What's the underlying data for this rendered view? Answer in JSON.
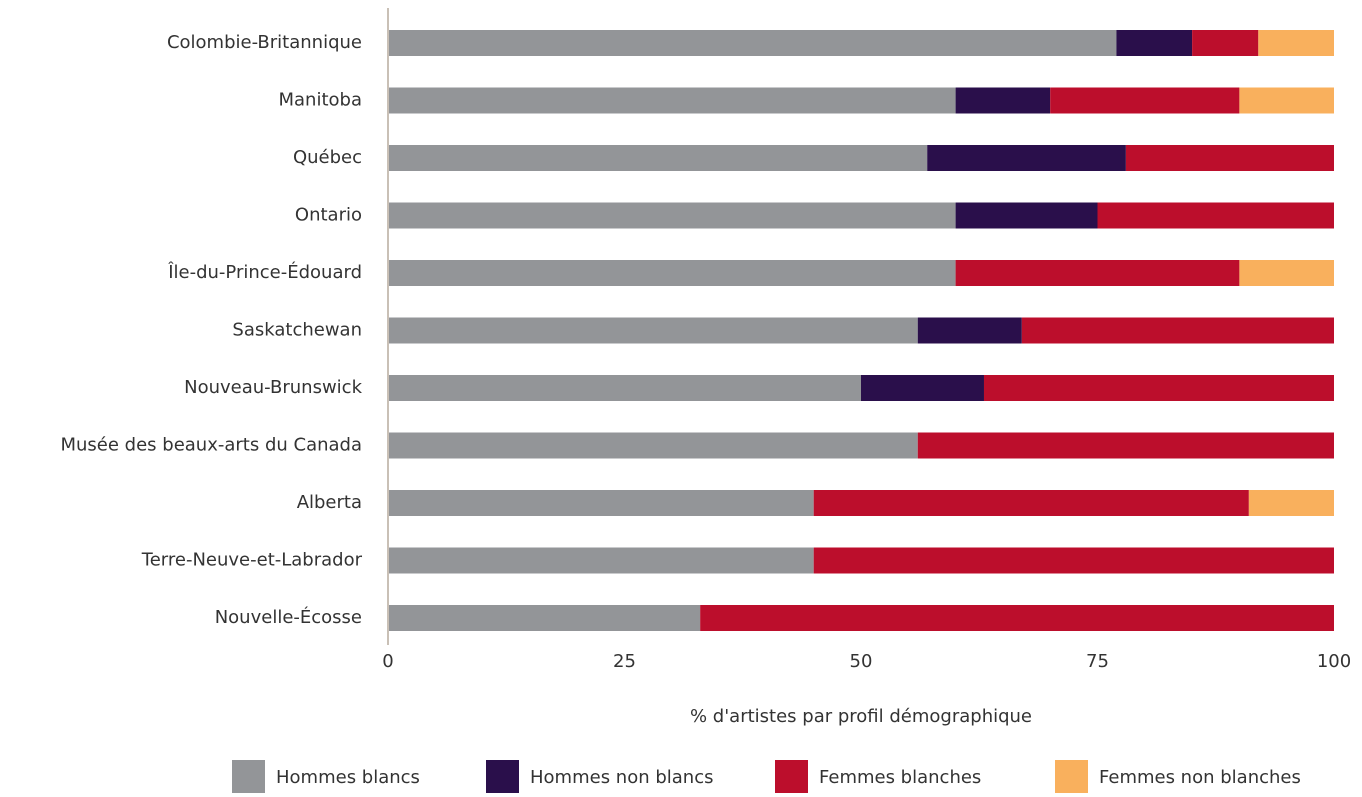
{
  "chart_data": {
    "type": "bar",
    "orientation": "horizontal",
    "stacked": true,
    "categories": [
      "Colombie-Britannique",
      "Manitoba",
      "Québec",
      "Ontario",
      "Île-du-Prince-Édouard",
      "Saskatchewan",
      "Nouveau-Brunswick",
      "Musée des beaux-arts du Canada",
      "Alberta",
      "Terre-Neuve-et-Labrador",
      "Nouvelle-Écosse"
    ],
    "series": [
      {
        "name": "Hommes blancs",
        "color": "#939598",
        "values": [
          77,
          60,
          57,
          60,
          60,
          56,
          50,
          56,
          45,
          45,
          33
        ]
      },
      {
        "name": "Hommes non blancs",
        "color": "#2a0f4b",
        "values": [
          8,
          10,
          21,
          15,
          0,
          11,
          13,
          0,
          0,
          0,
          0
        ]
      },
      {
        "name": "Femmes blanches",
        "color": "#bc0e2c",
        "values": [
          7,
          20,
          22,
          25,
          30,
          33,
          37,
          44,
          46,
          55,
          67
        ]
      },
      {
        "name": "Femmes non blanches",
        "color": "#f9b05d",
        "values": [
          8,
          10,
          0,
          0,
          10,
          0,
          0,
          0,
          9,
          0,
          0
        ]
      }
    ],
    "xlabel": "% d'artistes par profil démographique",
    "xlim": [
      0,
      100
    ],
    "xticks": [
      0,
      25,
      50,
      75,
      100
    ],
    "grid": false,
    "legend": "bottom"
  }
}
